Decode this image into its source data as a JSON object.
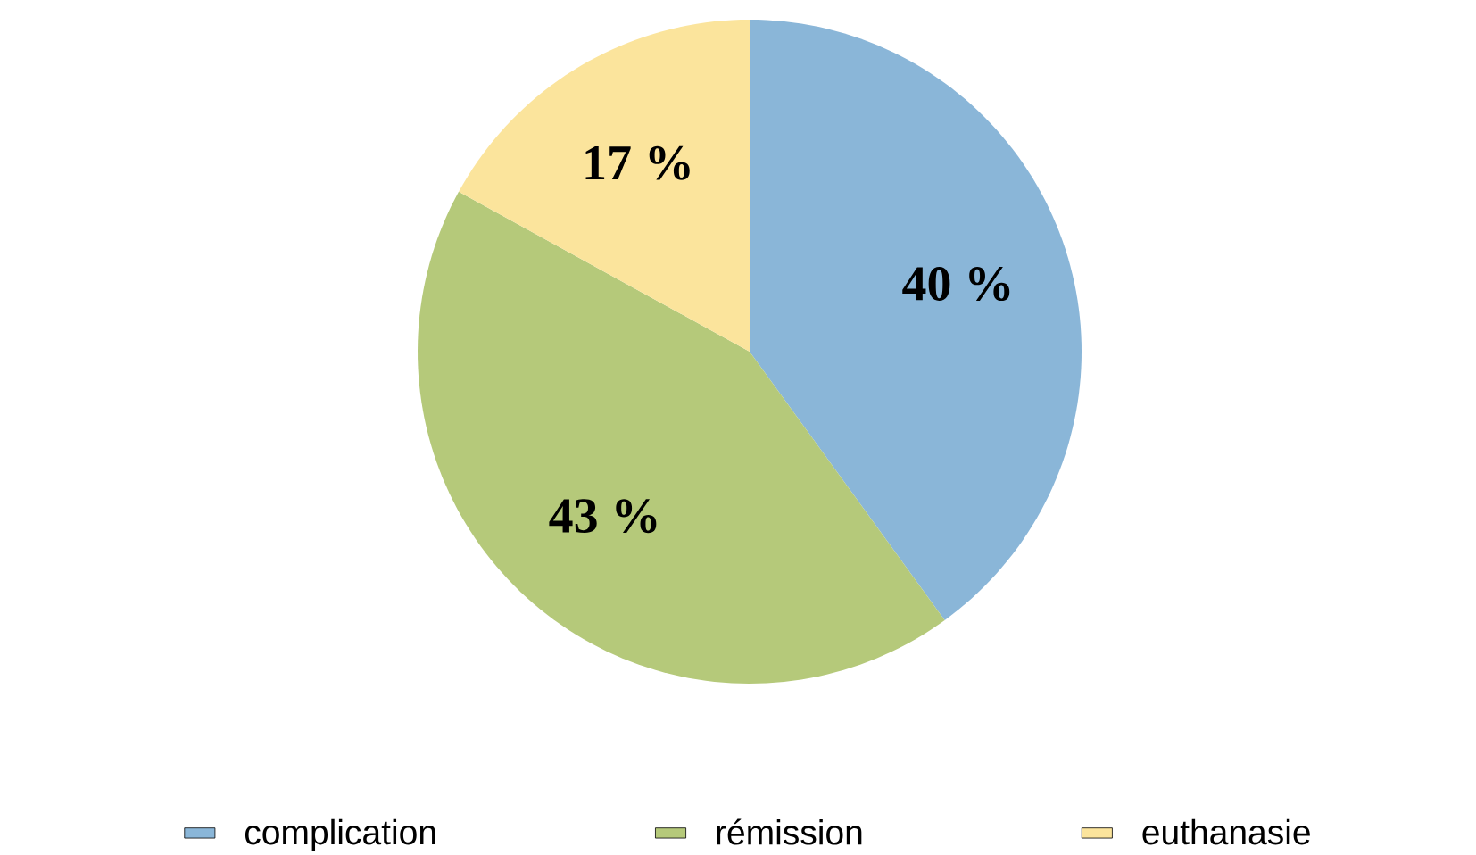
{
  "chart_data": {
    "type": "pie",
    "categories": [
      "complication",
      "rémission",
      "euthanasie"
    ],
    "values": [
      40,
      43,
      17
    ],
    "colors": [
      "#8ab6d8",
      "#b5c97a",
      "#fbe49c"
    ],
    "value_labels": [
      "40 %",
      "43 %",
      "17 %"
    ],
    "legend": "bottom"
  }
}
